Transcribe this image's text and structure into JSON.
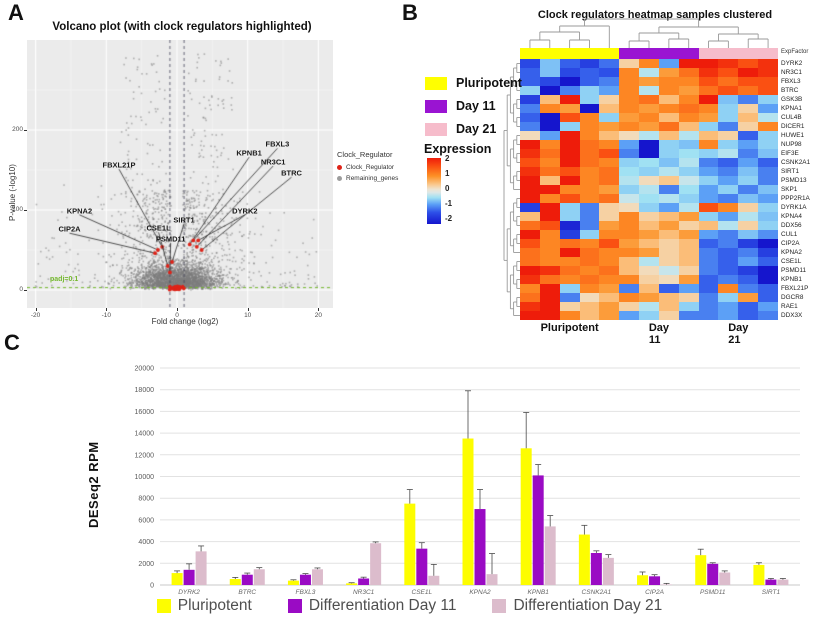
{
  "panels": {
    "a": "A",
    "b": "B",
    "c": "C"
  },
  "chart_data": [
    {
      "type": "scatter",
      "id": "volcano",
      "title": "Volcano plot (with clock regulators highlighted)",
      "xlabel": "Fold change (log2)",
      "ylabel": "P-value (-log10)",
      "x_ticks": [
        -20,
        -10,
        0,
        10,
        20
      ],
      "y_ticks": [
        0,
        100,
        200
      ],
      "xlim": [
        -21.5,
        22
      ],
      "ylim": [
        0,
        312
      ],
      "vlines": [
        -1,
        1
      ],
      "hline": {
        "y": 3,
        "label": "padj=0.1",
        "color": "#74b82e"
      },
      "legend": {
        "title": "Clock_Regulator",
        "items": [
          {
            "label": "Clock_Regulator",
            "color": "#de2318"
          },
          {
            "label": "Remaining_genes",
            "color": "#9c9c9c"
          }
        ]
      },
      "point_classes": {
        "highlighted_color": "#de2318",
        "background_color": "#8c8c8c",
        "background_n": 3600
      },
      "highlighted_genes": [
        {
          "name": "CIP2A",
          "fc": -3.1,
          "p": 46,
          "label_fc": -15.2,
          "label_p": 76
        },
        {
          "name": "KPNA2",
          "fc": -2.7,
          "p": 50,
          "label_fc": -13.8,
          "label_p": 99
        },
        {
          "name": "FBXL21P",
          "fc": -2.1,
          "p": 54,
          "label_fc": -8.2,
          "label_p": 156
        },
        {
          "name": "CSE1L",
          "fc": -1.3,
          "p": 30,
          "label_fc": -2.6,
          "label_p": 77
        },
        {
          "name": "PSMD11",
          "fc": -1.0,
          "p": 22,
          "label_fc": -0.9,
          "label_p": 64
        },
        {
          "name": "SIRT1",
          "fc": -0.7,
          "p": 35,
          "label_fc": 1.0,
          "label_p": 88
        },
        {
          "name": "KPNB1",
          "fc": 1.8,
          "p": 57,
          "label_fc": 10.2,
          "label_p": 171
        },
        {
          "name": "FBXL3",
          "fc": 2.3,
          "p": 62,
          "label_fc": 14.2,
          "label_p": 182
        },
        {
          "name": "NR3C1",
          "fc": 2.8,
          "p": 54,
          "label_fc": 13.6,
          "label_p": 160
        },
        {
          "name": "BTRC",
          "fc": 3.5,
          "p": 50,
          "label_fc": 16.2,
          "label_p": 146
        },
        {
          "name": "DYRK2",
          "fc": 3.0,
          "p": 62,
          "label_fc": 9.6,
          "label_p": 99
        }
      ]
    },
    {
      "type": "heatmap",
      "id": "clock-heatmap",
      "title": "Clock regulators heatmap samples clustered",
      "annotation_label": "ExpFactor",
      "col_groups": [
        {
          "label": "Pluripotent",
          "color": "#ffff00",
          "n": 5
        },
        {
          "label": "Day 11",
          "color": "#9a14d2",
          "n": 4
        },
        {
          "label": "Day 21",
          "color": "#f6bccb",
          "n": 4
        }
      ],
      "scale": {
        "title": "Expression",
        "ticks": [
          2,
          1,
          0,
          -1,
          -2
        ],
        "stops": [
          {
            "v": -2.0,
            "c": "#1515cd"
          },
          {
            "v": -1.3,
            "c": "#2d50e8"
          },
          {
            "v": -0.8,
            "c": "#5ca0f6"
          },
          {
            "v": -0.4,
            "c": "#a0e1f3"
          },
          {
            "v": -0.1,
            "c": "#dbe7e7"
          },
          {
            "v": 0.1,
            "c": "#eee4d2"
          },
          {
            "v": 0.4,
            "c": "#fac88c"
          },
          {
            "v": 0.9,
            "c": "#fd9126"
          },
          {
            "v": 1.5,
            "c": "#fa5012"
          },
          {
            "v": 2.0,
            "c": "#ee1c0a"
          }
        ]
      },
      "rows": [
        "DYRK2",
        "NR3C1",
        "FBXL3",
        "BTRC",
        "GSK3B",
        "KPNA1",
        "CUL4B",
        "DICER1",
        "HUWE1",
        "NUP98",
        "EIF3E",
        "CSNK2A1",
        "SIRT1",
        "PSMD13",
        "SKP1",
        "PPP2R1A",
        "DYRK1A",
        "KPNA4",
        "DDX56",
        "CUL1",
        "CIP2A",
        "KPNA2",
        "CSE1L",
        "PSMD11",
        "KPNB1",
        "FBXL21P",
        "DGCR8",
        "RAE1",
        "DDX3X"
      ],
      "values": [
        [
          -1.4,
          -0.6,
          -1.2,
          -1.5,
          -1.1,
          0.3,
          1.0,
          -0.8,
          2.0,
          2.0,
          1.8,
          1.5,
          1.8
        ],
        [
          -1.2,
          -0.6,
          -1.4,
          -1.2,
          -1.3,
          1.0,
          -0.3,
          0.8,
          1.2,
          1.8,
          1.5,
          2.0,
          1.8
        ],
        [
          -1.2,
          -1.4,
          -2.0,
          -1.2,
          -1.0,
          1.0,
          0.8,
          1.0,
          1.0,
          1.5,
          1.2,
          1.5,
          1.5
        ],
        [
          -0.5,
          -2.0,
          -1.0,
          -0.5,
          -0.8,
          1.0,
          -0.3,
          1.0,
          0.8,
          1.2,
          1.5,
          1.2,
          1.5
        ],
        [
          -1.5,
          0.5,
          2.0,
          -0.5,
          0.3,
          1.0,
          1.2,
          0.5,
          1.0,
          2.0,
          -0.6,
          -1.0,
          -0.5
        ],
        [
          -1.0,
          1.0,
          0.8,
          -2.0,
          0.5,
          1.0,
          0.8,
          1.0,
          1.2,
          1.0,
          -0.5,
          0.3,
          -0.8
        ],
        [
          -1.2,
          -2.0,
          1.5,
          1.0,
          -0.5,
          0.8,
          1.0,
          0.5,
          1.0,
          0.8,
          -0.5,
          0.5,
          -0.3
        ],
        [
          -1.0,
          -2.0,
          -0.5,
          1.0,
          0.8,
          1.0,
          0.8,
          1.2,
          0.5,
          -0.5,
          -1.0,
          0.3,
          1.0
        ],
        [
          0.2,
          -0.8,
          2.0,
          1.0,
          0.5,
          0.2,
          -0.3,
          0.5,
          -0.3,
          0.5,
          0.3,
          -1.2,
          -0.5
        ],
        [
          2.0,
          1.0,
          2.0,
          1.2,
          1.0,
          -0.8,
          -2.0,
          -0.5,
          -0.6,
          1.0,
          -0.5,
          -0.8,
          -0.5
        ],
        [
          1.8,
          1.2,
          2.0,
          1.2,
          1.5,
          -1.0,
          -2.0,
          -0.5,
          -0.4,
          -0.5,
          -0.3,
          -1.0,
          -0.6
        ],
        [
          1.5,
          1.0,
          2.0,
          1.2,
          1.0,
          -0.5,
          -0.4,
          -0.6,
          -0.3,
          -1.0,
          -1.2,
          -0.8,
          -1.2
        ],
        [
          1.8,
          1.2,
          1.5,
          1.0,
          1.2,
          -0.4,
          -0.5,
          -0.3,
          -0.5,
          -0.8,
          -1.0,
          -0.6,
          -1.0
        ],
        [
          2.0,
          0.5,
          2.0,
          1.0,
          1.2,
          -0.3,
          0.2,
          0.4,
          -0.2,
          -0.5,
          -0.8,
          -0.5,
          -1.0
        ],
        [
          2.0,
          2.0,
          1.0,
          1.0,
          0.8,
          -0.5,
          -0.3,
          -1.0,
          -0.4,
          -0.8,
          -0.5,
          -1.0,
          -0.6
        ],
        [
          2.0,
          1.0,
          1.5,
          1.0,
          1.2,
          -0.2,
          -0.4,
          -0.3,
          -0.5,
          -0.8,
          -1.0,
          -0.6,
          -0.8
        ],
        [
          -1.5,
          2.0,
          -0.5,
          -1.0,
          0.3,
          0.2,
          -0.5,
          -0.8,
          -0.3,
          1.5,
          1.0,
          0.3,
          -0.5
        ],
        [
          0.5,
          2.0,
          -0.5,
          -1.0,
          0.3,
          1.0,
          0.3,
          0.5,
          0.8,
          -0.5,
          -0.8,
          -0.3,
          -0.6
        ],
        [
          1.2,
          1.5,
          -1.8,
          -1.0,
          0.8,
          1.0,
          0.5,
          0.8,
          0.3,
          0.5,
          -0.3,
          0.3,
          -0.5
        ],
        [
          2.0,
          1.0,
          -1.5,
          -0.5,
          1.0,
          1.0,
          0.8,
          0.5,
          0.8,
          -0.8,
          -1.0,
          -0.6,
          -0.9
        ],
        [
          1.5,
          1.0,
          1.2,
          1.0,
          1.5,
          0.8,
          0.5,
          0.3,
          0.5,
          -1.2,
          -1.0,
          -1.5,
          -2.0
        ],
        [
          1.2,
          1.0,
          2.0,
          1.2,
          1.0,
          1.0,
          0.8,
          0.3,
          0.5,
          -1.0,
          -1.2,
          -1.0,
          -1.5
        ],
        [
          1.2,
          1.0,
          1.0,
          1.2,
          1.0,
          0.5,
          -0.3,
          0.3,
          0.5,
          -1.0,
          -1.2,
          -0.8,
          -1.2
        ],
        [
          2.0,
          1.8,
          1.2,
          1.0,
          1.2,
          0.5,
          0.2,
          -0.2,
          0.3,
          -1.0,
          -1.2,
          -1.5,
          -2.0
        ],
        [
          1.8,
          1.2,
          1.0,
          1.2,
          1.0,
          1.0,
          0.3,
          0.2,
          0.8,
          -1.2,
          -1.0,
          -1.2,
          -2.0
        ],
        [
          1.0,
          2.0,
          -0.5,
          1.0,
          0.8,
          -1.0,
          0.5,
          -1.2,
          -0.8,
          -1.2,
          1.0,
          -1.0,
          -1.2
        ],
        [
          1.2,
          2.0,
          -1.0,
          0.2,
          0.5,
          1.0,
          0.8,
          0.5,
          0.3,
          -1.0,
          -0.5,
          0.8,
          -1.2
        ],
        [
          1.8,
          2.0,
          0.3,
          0.5,
          0.8,
          0.3,
          -0.3,
          0.5,
          -0.5,
          -1.0,
          -0.8,
          -1.2,
          -0.8
        ],
        [
          2.0,
          2.0,
          1.0,
          0.5,
          0.8,
          -0.8,
          -0.5,
          0.3,
          -1.0,
          -1.0,
          -0.8,
          -1.2,
          -1.0
        ]
      ]
    },
    {
      "type": "bar",
      "id": "rpm-bars",
      "ylabel": "DESeq2 RPM",
      "ylim": [
        0,
        20000
      ],
      "y_ticks": [
        0,
        2000,
        4000,
        6000,
        8000,
        10000,
        12000,
        14000,
        16000,
        18000,
        20000
      ],
      "categories": [
        "DYRK2",
        "BTRC",
        "FBXL3",
        "NR3C1",
        "CSE1L",
        "KPNA2",
        "KPNB1",
        "CSNK2A1",
        "CIP2A",
        "PSMD11",
        "SIRT1"
      ],
      "series": [
        {
          "name": "Pluripotent",
          "color": "#fdfd00",
          "values": [
            1100,
            550,
            400,
            150,
            7500,
            13500,
            12600,
            4650,
            900,
            2750,
            1850
          ],
          "errors": [
            200,
            150,
            80,
            60,
            1300,
            4400,
            3300,
            850,
            300,
            550,
            200
          ]
        },
        {
          "name": "Differentiation Day 11",
          "color": "#9a0bc4",
          "values": [
            1400,
            950,
            950,
            600,
            3350,
            7000,
            10100,
            2950,
            800,
            1950,
            500
          ],
          "errors": [
            550,
            150,
            100,
            120,
            550,
            1800,
            1000,
            200,
            150,
            100,
            100
          ]
        },
        {
          "name": "Differentiation Day 21",
          "color": "#dcbccc",
          "values": [
            3100,
            1450,
            1450,
            3850,
            850,
            1000,
            5400,
            2500,
            50,
            1150,
            500
          ],
          "errors": [
            500,
            150,
            120,
            120,
            1050,
            1900,
            1000,
            300,
            100,
            150,
            100
          ]
        }
      ]
    }
  ]
}
